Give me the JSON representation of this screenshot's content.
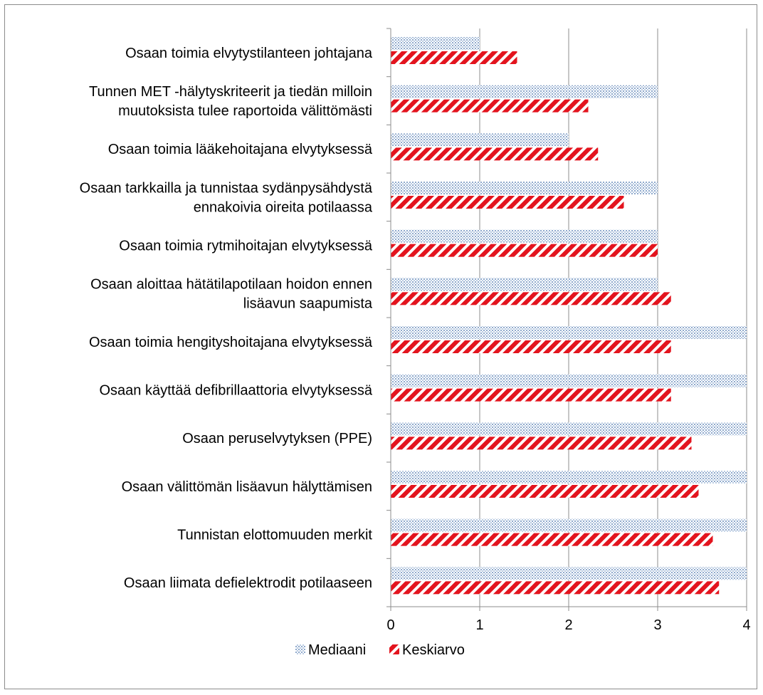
{
  "chart_data": {
    "type": "bar",
    "orientation": "horizontal",
    "categories": [
      [
        "Osaan toimia elvytystilanteen johtajana"
      ],
      [
        "Tunnen MET -hälytyskriteerit ja tiedän milloin",
        "muutoksista tulee raportoida välittömästi"
      ],
      [
        "Osaan toimia lääkehoitajana elvytyksessä"
      ],
      [
        "Osaan tarkkailla ja tunnistaa sydänpysähdystä",
        "ennakoivia oireita potilaassa"
      ],
      [
        "Osaan toimia rytmihoitajan elvytyksessä"
      ],
      [
        "Osaan aloittaa hätätilapotilaan hoidon ennen",
        "lisäavun saapumista"
      ],
      [
        "Osaan toimia hengityshoitajana elvytyksessä"
      ],
      [
        "Osaan käyttää defibrillaattoria elvytyksessä"
      ],
      [
        "Osaan peruselvytyksen (PPE)"
      ],
      [
        "Osaan välittömän lisäavun hälyttämisen"
      ],
      [
        "Tunnistan elottomuuden merkit"
      ],
      [
        "Osaan liimata defielektrodit potilaaseen"
      ]
    ],
    "series": [
      {
        "name": "Mediaani",
        "color": "#9fb6d4",
        "pattern": "dots",
        "values": [
          1,
          3,
          2,
          3,
          3,
          3,
          4,
          4,
          4,
          4,
          4,
          4
        ]
      },
      {
        "name": "Keskiarvo",
        "color": "#e3141e",
        "pattern": "diagonal-stripes",
        "values": [
          1.42,
          2.22,
          2.33,
          2.62,
          3.0,
          3.15,
          3.15,
          3.15,
          3.38,
          3.46,
          3.62,
          3.69
        ]
      }
    ],
    "xlim": [
      0,
      4
    ],
    "xticks": [
      0,
      1,
      2,
      3,
      4
    ],
    "grid": "vertical",
    "legend": "bottom",
    "title": "",
    "xlabel": "",
    "ylabel": ""
  }
}
